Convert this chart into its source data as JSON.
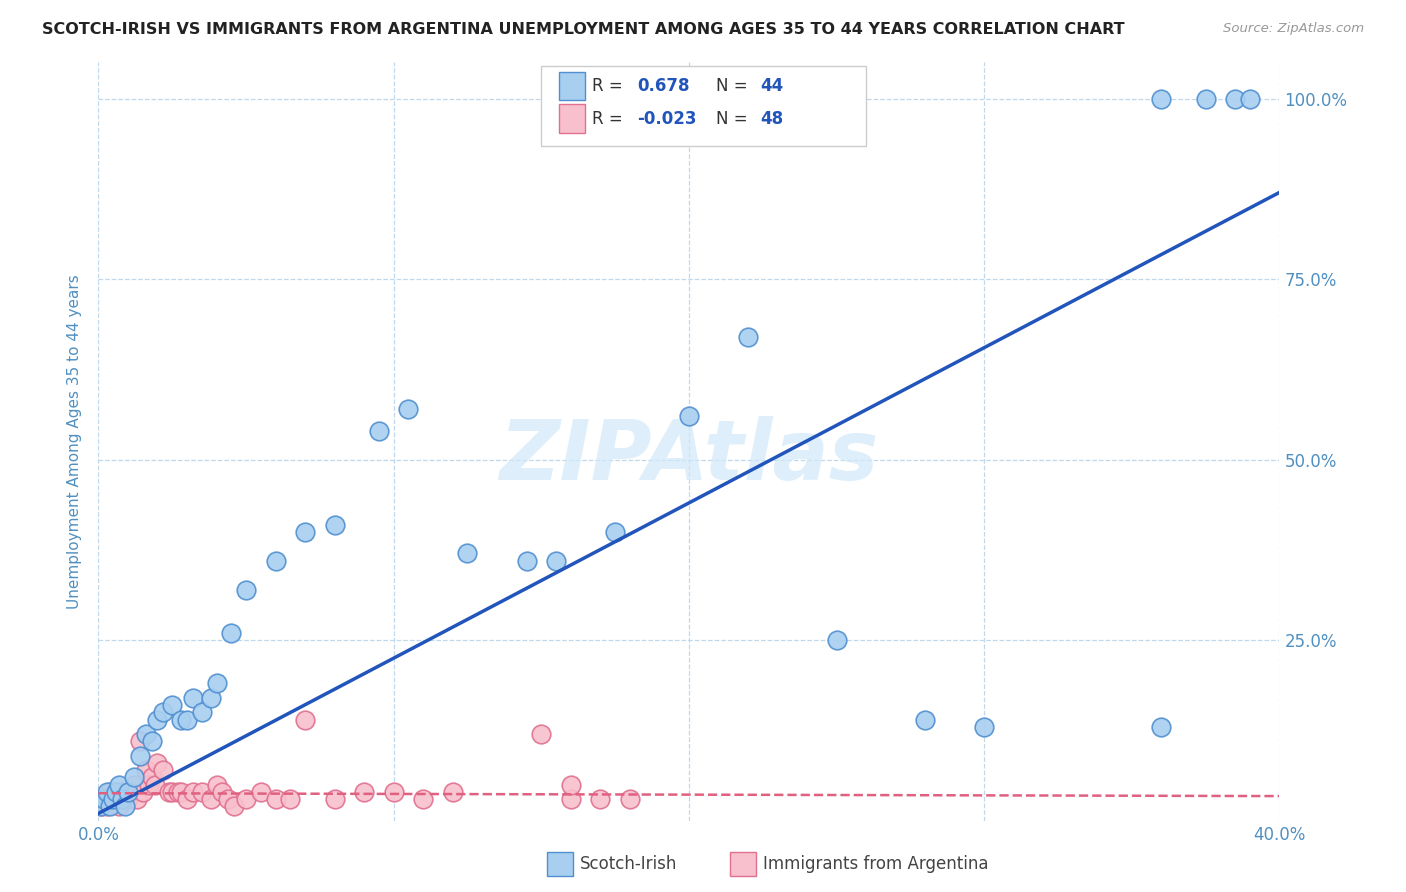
{
  "title": "SCOTCH-IRISH VS IMMIGRANTS FROM ARGENTINA UNEMPLOYMENT AMONG AGES 35 TO 44 YEARS CORRELATION CHART",
  "source": "Source: ZipAtlas.com",
  "ylabel": "Unemployment Among Ages 35 to 44 years",
  "xlim": [
    0.0,
    0.4
  ],
  "ylim": [
    0.0,
    1.05
  ],
  "x_tick_positions": [
    0.0,
    0.1,
    0.2,
    0.3,
    0.4
  ],
  "x_tick_labels": [
    "0.0%",
    "",
    "",
    "",
    "40.0%"
  ],
  "y_tick_positions": [
    0.0,
    0.25,
    0.5,
    0.75,
    1.0
  ],
  "y_tick_labels_right": [
    "",
    "25.0%",
    "50.0%",
    "75.0%",
    "100.0%"
  ],
  "scotch_irish_fill": "#a8cff0",
  "scotch_irish_edge": "#5090d0",
  "argentina_fill": "#f8c0cc",
  "argentina_edge": "#e07090",
  "si_line_color": "#2255bb",
  "arg_line_color": "#e06080",
  "grid_color": "#c0d8ec",
  "bg_color": "#ffffff",
  "watermark": "ZIPAtlas",
  "watermark_color": "#d0e8f8",
  "title_color": "#222222",
  "title_fontsize": 11.5,
  "source_color": "#999999",
  "ylabel_color": "#5090c0",
  "tick_color": "#5090c0",
  "legend_r1_label": "R = ",
  "legend_r1_val": "0.678",
  "legend_r1_n_label": "N = ",
  "legend_r1_n_val": "44",
  "legend_r2_label": "R = ",
  "legend_r2_val": "-0.023",
  "legend_r2_n_label": "N = ",
  "legend_r2_n_val": "48",
  "si_x": [
    0.001,
    0.002,
    0.003,
    0.004,
    0.005,
    0.006,
    0.007,
    0.008,
    0.009,
    0.01,
    0.012,
    0.014,
    0.016,
    0.018,
    0.02,
    0.022,
    0.025,
    0.028,
    0.03,
    0.032,
    0.035,
    0.038,
    0.04,
    0.045,
    0.05,
    0.06,
    0.07,
    0.08,
    0.095,
    0.105,
    0.125,
    0.145,
    0.155,
    0.175,
    0.2,
    0.22,
    0.25,
    0.28,
    0.3,
    0.36,
    0.36,
    0.375,
    0.385,
    0.39
  ],
  "si_y": [
    0.02,
    0.03,
    0.04,
    0.02,
    0.03,
    0.04,
    0.05,
    0.03,
    0.02,
    0.04,
    0.06,
    0.09,
    0.12,
    0.11,
    0.14,
    0.15,
    0.16,
    0.14,
    0.14,
    0.17,
    0.15,
    0.17,
    0.19,
    0.26,
    0.32,
    0.36,
    0.4,
    0.41,
    0.54,
    0.57,
    0.37,
    0.36,
    0.36,
    0.4,
    0.56,
    0.67,
    0.25,
    0.14,
    0.13,
    0.13,
    1.0,
    1.0,
    1.0,
    1.0
  ],
  "arg_x": [
    0.001,
    0.002,
    0.003,
    0.004,
    0.005,
    0.006,
    0.007,
    0.008,
    0.009,
    0.01,
    0.011,
    0.012,
    0.013,
    0.014,
    0.015,
    0.016,
    0.017,
    0.018,
    0.019,
    0.02,
    0.022,
    0.024,
    0.025,
    0.027,
    0.028,
    0.03,
    0.032,
    0.035,
    0.038,
    0.04,
    0.042,
    0.044,
    0.046,
    0.05,
    0.055,
    0.06,
    0.065,
    0.07,
    0.08,
    0.09,
    0.1,
    0.11,
    0.12,
    0.15,
    0.16,
    0.17,
    0.18,
    0.16
  ],
  "arg_y": [
    0.02,
    0.03,
    0.02,
    0.04,
    0.03,
    0.03,
    0.02,
    0.04,
    0.03,
    0.03,
    0.04,
    0.05,
    0.03,
    0.11,
    0.04,
    0.07,
    0.05,
    0.06,
    0.05,
    0.08,
    0.07,
    0.04,
    0.04,
    0.04,
    0.04,
    0.03,
    0.04,
    0.04,
    0.03,
    0.05,
    0.04,
    0.03,
    0.02,
    0.03,
    0.04,
    0.03,
    0.03,
    0.14,
    0.03,
    0.04,
    0.04,
    0.03,
    0.04,
    0.12,
    0.03,
    0.03,
    0.03,
    0.05
  ],
  "si_line_x0": 0.0,
  "si_line_y0": 0.01,
  "si_line_x1": 0.4,
  "si_line_y1": 0.87,
  "arg_line_x0": 0.0,
  "arg_line_y0": 0.038,
  "arg_line_x1": 0.4,
  "arg_line_y1": 0.034
}
